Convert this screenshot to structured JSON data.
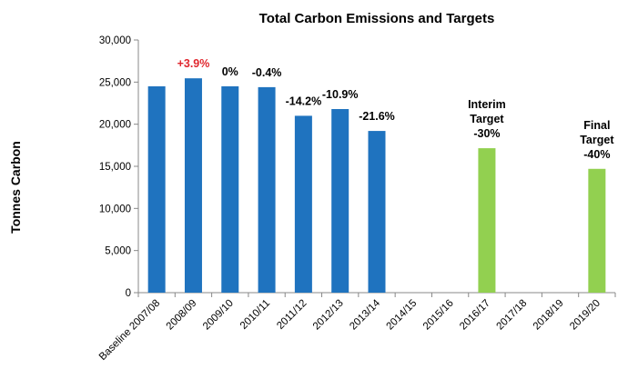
{
  "chart_data": {
    "type": "bar",
    "title": "Total Carbon Emissions and Targets",
    "xlabel": "",
    "ylabel": "Tonnes Carbon",
    "ylim": [
      0,
      30000
    ],
    "yticks": [
      0,
      5000,
      10000,
      15000,
      20000,
      25000,
      30000
    ],
    "ytick_labels": [
      "0",
      "5,000",
      "10,000",
      "15,000",
      "20,000",
      "25,000",
      "30,000"
    ],
    "grid": false,
    "legend": "none",
    "categories": [
      "Baseline 2007/08",
      "2008/09",
      "2009/10",
      "2010/11",
      "2011/12",
      "2012/13",
      "2013/14",
      "2014/15",
      "2015/16",
      "2016/17",
      "2017/18",
      "2018/19",
      "2019/20"
    ],
    "series": [
      {
        "name": "Total Carbon Emissions",
        "color": "#1F73BF",
        "values": [
          24500,
          25450,
          24500,
          24400,
          21000,
          21800,
          19200,
          null,
          null,
          null,
          null,
          null,
          null
        ]
      },
      {
        "name": "Targets",
        "color": "#92D050",
        "values": [
          null,
          null,
          null,
          null,
          null,
          null,
          null,
          null,
          null,
          17150,
          null,
          null,
          14700
        ]
      }
    ],
    "annotations": [
      {
        "category": "2008/09",
        "lines": [
          "+3.9%"
        ],
        "color": "#E0272E"
      },
      {
        "category": "2009/10",
        "lines": [
          "0%"
        ],
        "color": "#000000"
      },
      {
        "category": "2010/11",
        "lines": [
          "-0.4%"
        ],
        "color": "#000000"
      },
      {
        "category": "2011/12",
        "lines": [
          "-14.2%"
        ],
        "color": "#000000"
      },
      {
        "category": "2012/13",
        "lines": [
          "-10.9%"
        ],
        "color": "#000000"
      },
      {
        "category": "2013/14",
        "lines": [
          "-21.6%"
        ],
        "color": "#000000"
      },
      {
        "category": "2016/17",
        "lines": [
          "Interim",
          "Target",
          "-30%"
        ],
        "color": "#000000"
      },
      {
        "category": "2019/20",
        "lines": [
          "Final",
          "Target",
          "-40%"
        ],
        "color": "#000000"
      }
    ]
  }
}
